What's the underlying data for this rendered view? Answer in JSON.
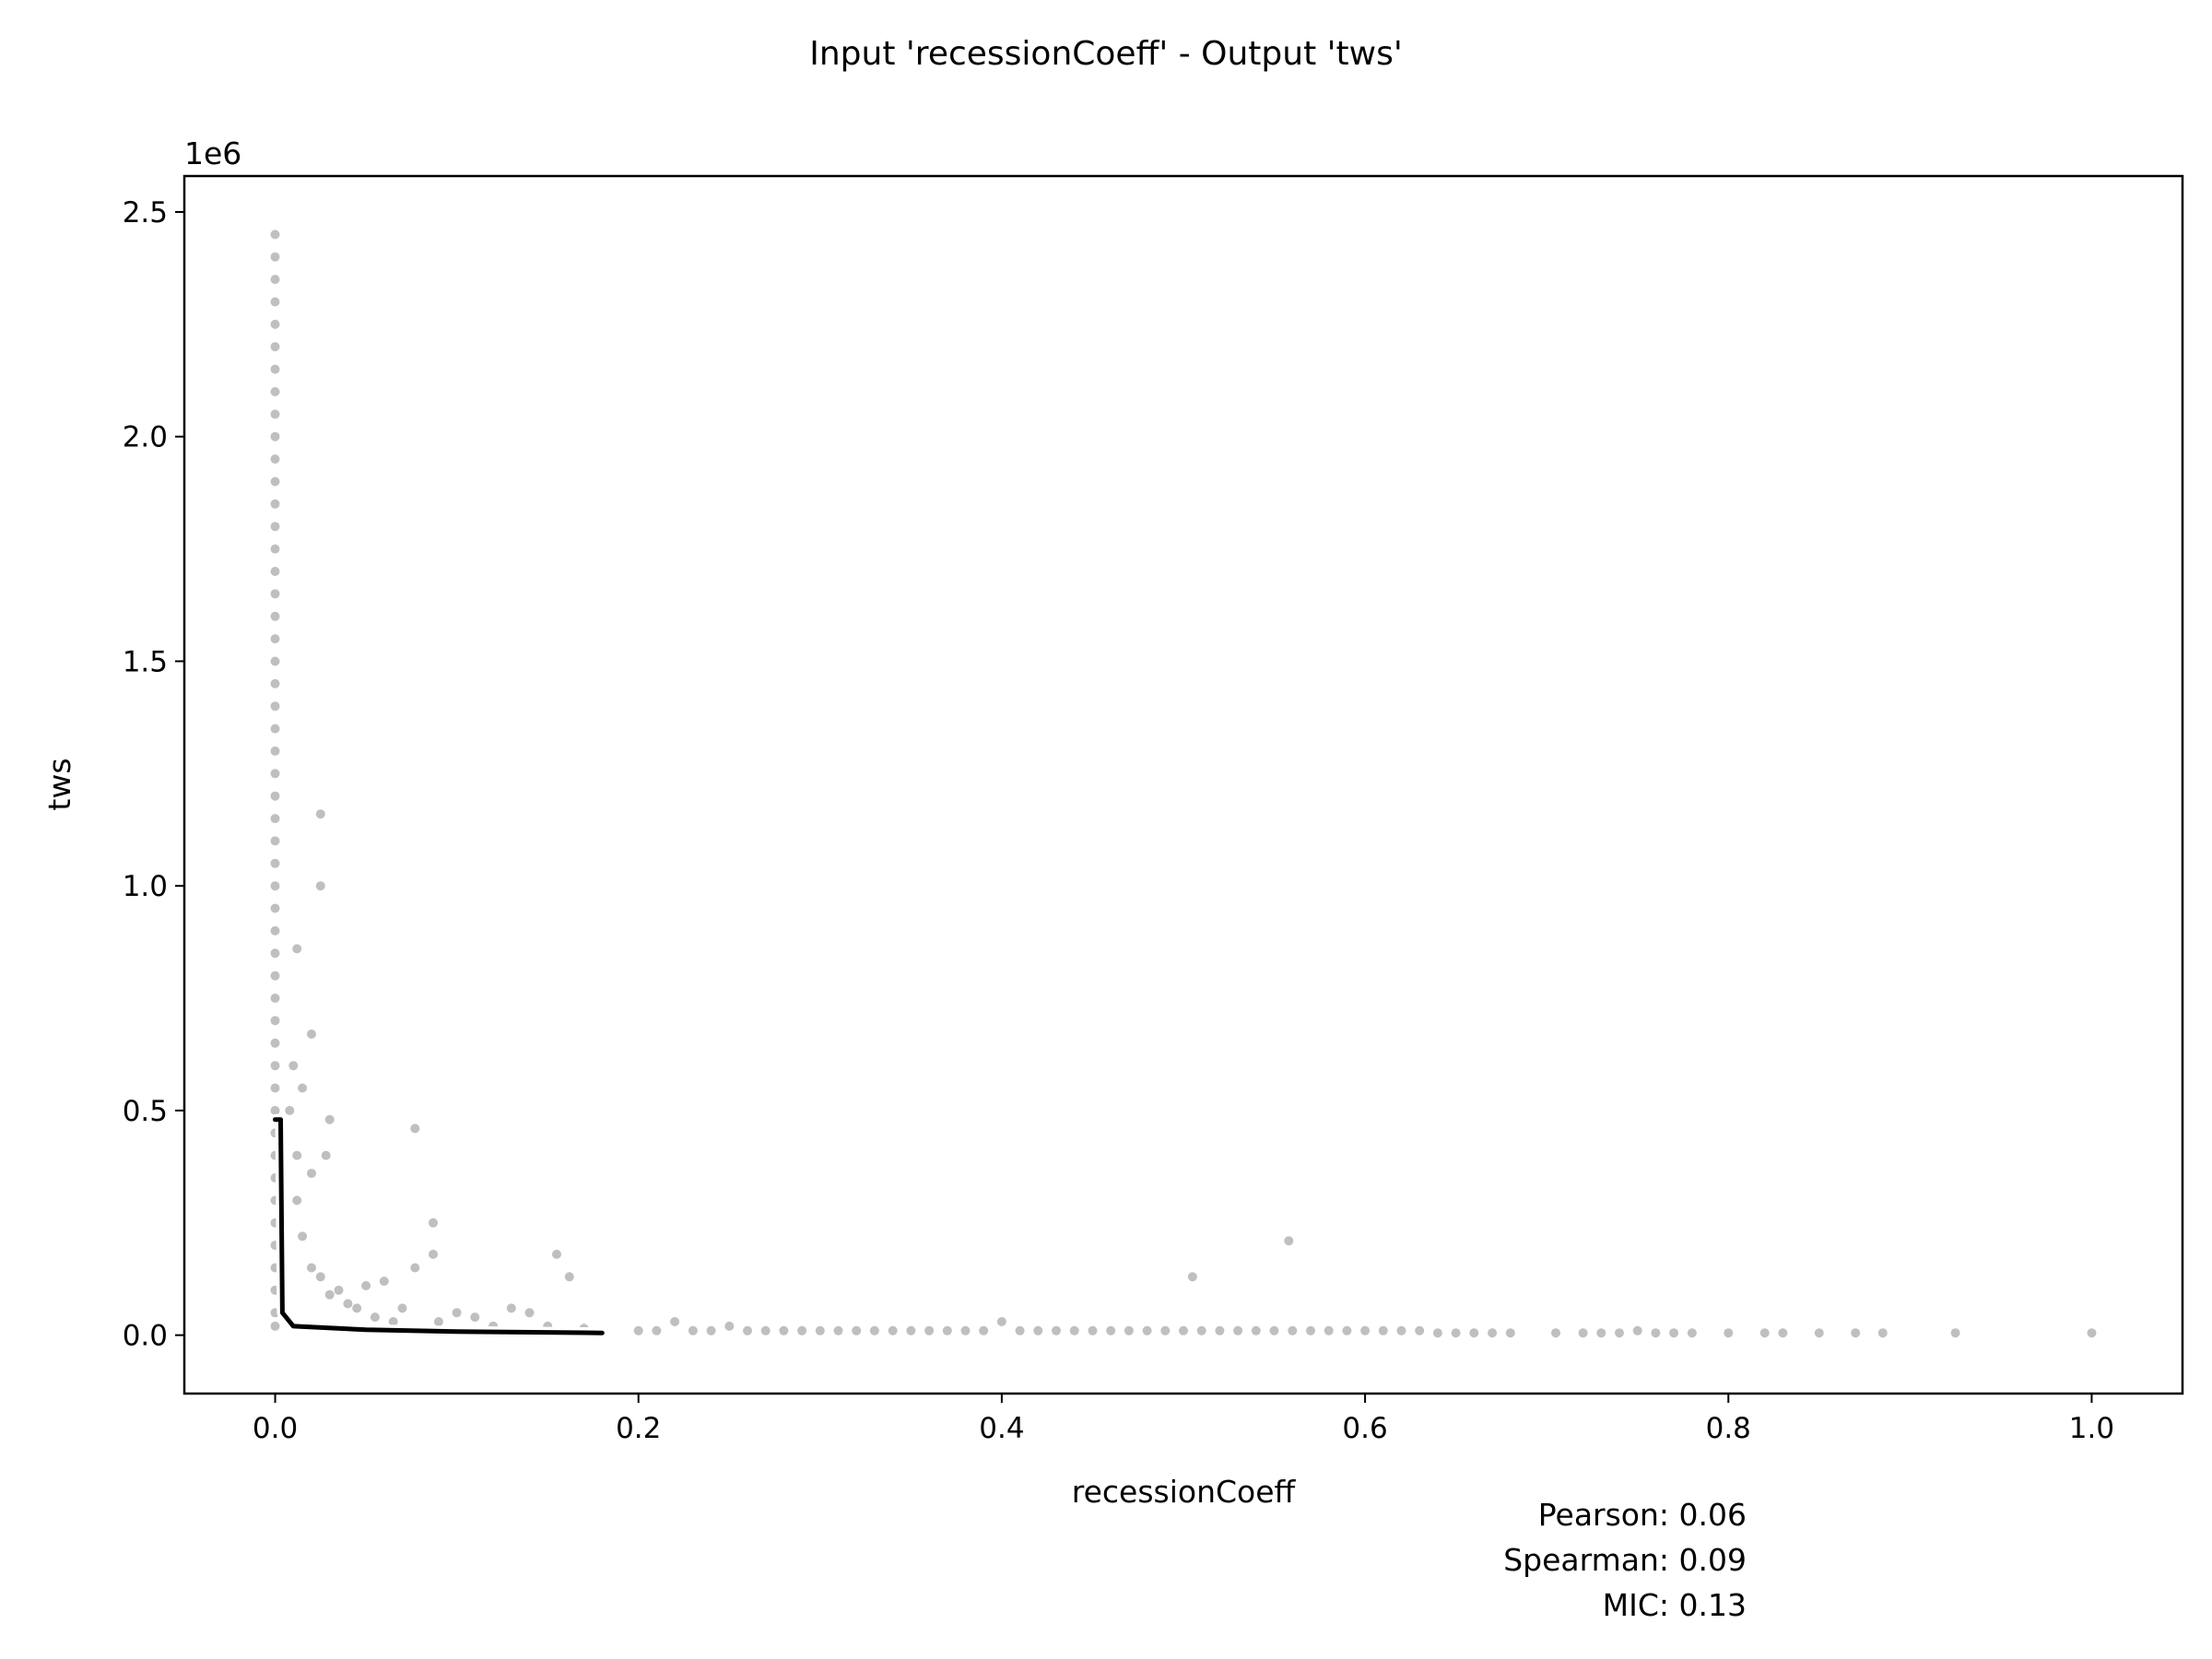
{
  "chart_data": {
    "type": "scatter",
    "title": "Input 'recessionCoeff' - Output 'tws'",
    "xlabel": "recessionCoeff",
    "ylabel": "tws",
    "offset_label": "1e6",
    "xlim": [
      -0.05,
      1.05
    ],
    "ylim": [
      -0.13,
      2.58
    ],
    "y_scale_factor": 1000000,
    "x_ticks": [
      0.0,
      0.2,
      0.4,
      0.6,
      0.8,
      1.0
    ],
    "x_tick_labels": [
      "0.0",
      "0.2",
      "0.4",
      "0.6",
      "0.8",
      "1.0"
    ],
    "y_ticks": [
      0.0,
      0.5,
      1.0,
      1.5,
      2.0,
      2.5
    ],
    "y_tick_labels": [
      "0.0",
      "0.5",
      "1.0",
      "1.5",
      "2.0",
      "2.5"
    ],
    "grid": false,
    "point_color": "#000000",
    "point_alpha": 0.25,
    "trend_line_color": "#000000",
    "trend_line_outline": "#ffffff",
    "scatter_points": [
      [
        0.0,
        2.45
      ],
      [
        0.0,
        2.4
      ],
      [
        0.0,
        2.35
      ],
      [
        0.0,
        2.3
      ],
      [
        0.0,
        2.25
      ],
      [
        0.0,
        2.2
      ],
      [
        0.0,
        2.15
      ],
      [
        0.0,
        2.1
      ],
      [
        0.0,
        2.05
      ],
      [
        0.0,
        2.0
      ],
      [
        0.0,
        1.95
      ],
      [
        0.0,
        1.9
      ],
      [
        0.0,
        1.85
      ],
      [
        0.0,
        1.8
      ],
      [
        0.0,
        1.75
      ],
      [
        0.0,
        1.7
      ],
      [
        0.0,
        1.65
      ],
      [
        0.0,
        1.6
      ],
      [
        0.0,
        1.55
      ],
      [
        0.0,
        1.5
      ],
      [
        0.0,
        1.45
      ],
      [
        0.0,
        1.4
      ],
      [
        0.0,
        1.35
      ],
      [
        0.0,
        1.3
      ],
      [
        0.0,
        1.25
      ],
      [
        0.0,
        1.2
      ],
      [
        0.0,
        1.15
      ],
      [
        0.0,
        1.1
      ],
      [
        0.0,
        1.05
      ],
      [
        0.0,
        1.0
      ],
      [
        0.0,
        0.95
      ],
      [
        0.0,
        0.9
      ],
      [
        0.0,
        0.85
      ],
      [
        0.0,
        0.8
      ],
      [
        0.0,
        0.75
      ],
      [
        0.0,
        0.7
      ],
      [
        0.0,
        0.65
      ],
      [
        0.0,
        0.6
      ],
      [
        0.0,
        0.55
      ],
      [
        0.0,
        0.5
      ],
      [
        0.0,
        0.45
      ],
      [
        0.0,
        0.4
      ],
      [
        0.0,
        0.35
      ],
      [
        0.0,
        0.3
      ],
      [
        0.0,
        0.25
      ],
      [
        0.0,
        0.2
      ],
      [
        0.0,
        0.15
      ],
      [
        0.0,
        0.1
      ],
      [
        0.0,
        0.05
      ],
      [
        0.0,
        0.02
      ],
      [
        0.025,
        1.16
      ],
      [
        0.025,
        1.0
      ],
      [
        0.012,
        0.86
      ],
      [
        0.02,
        0.67
      ],
      [
        0.01,
        0.6
      ],
      [
        0.015,
        0.55
      ],
      [
        0.008,
        0.5
      ],
      [
        0.03,
        0.48
      ],
      [
        0.077,
        0.46
      ],
      [
        0.012,
        0.4
      ],
      [
        0.028,
        0.4
      ],
      [
        0.02,
        0.36
      ],
      [
        0.012,
        0.3
      ],
      [
        0.087,
        0.25
      ],
      [
        0.015,
        0.22
      ],
      [
        0.087,
        0.18
      ],
      [
        0.155,
        0.18
      ],
      [
        0.077,
        0.15
      ],
      [
        0.162,
        0.13
      ],
      [
        0.05,
        0.11
      ],
      [
        0.06,
        0.12
      ],
      [
        0.03,
        0.09
      ],
      [
        0.04,
        0.07
      ],
      [
        0.07,
        0.06
      ],
      [
        0.1,
        0.05
      ],
      [
        0.13,
        0.06
      ],
      [
        0.14,
        0.05
      ],
      [
        0.11,
        0.04
      ],
      [
        0.02,
        0.15
      ],
      [
        0.025,
        0.13
      ],
      [
        0.035,
        0.1
      ],
      [
        0.045,
        0.06
      ],
      [
        0.055,
        0.04
      ],
      [
        0.065,
        0.03
      ],
      [
        0.09,
        0.03
      ],
      [
        0.12,
        0.02
      ],
      [
        0.15,
        0.02
      ],
      [
        0.17,
        0.015
      ],
      [
        0.505,
        0.13
      ],
      [
        0.558,
        0.21
      ],
      [
        0.22,
        0.03
      ],
      [
        0.25,
        0.02
      ],
      [
        0.4,
        0.03
      ],
      [
        0.2,
        0.01
      ],
      [
        0.21,
        0.01
      ],
      [
        0.23,
        0.01
      ],
      [
        0.24,
        0.01
      ],
      [
        0.26,
        0.01
      ],
      [
        0.27,
        0.01
      ],
      [
        0.28,
        0.01
      ],
      [
        0.29,
        0.01
      ],
      [
        0.3,
        0.01
      ],
      [
        0.31,
        0.01
      ],
      [
        0.32,
        0.01
      ],
      [
        0.33,
        0.01
      ],
      [
        0.34,
        0.01
      ],
      [
        0.35,
        0.01
      ],
      [
        0.36,
        0.01
      ],
      [
        0.37,
        0.01
      ],
      [
        0.38,
        0.01
      ],
      [
        0.39,
        0.01
      ],
      [
        0.41,
        0.01
      ],
      [
        0.42,
        0.01
      ],
      [
        0.43,
        0.01
      ],
      [
        0.44,
        0.01
      ],
      [
        0.45,
        0.01
      ],
      [
        0.46,
        0.01
      ],
      [
        0.47,
        0.01
      ],
      [
        0.48,
        0.01
      ],
      [
        0.49,
        0.01
      ],
      [
        0.5,
        0.01
      ],
      [
        0.51,
        0.01
      ],
      [
        0.52,
        0.01
      ],
      [
        0.53,
        0.01
      ],
      [
        0.54,
        0.01
      ],
      [
        0.55,
        0.01
      ],
      [
        0.56,
        0.01
      ],
      [
        0.57,
        0.01
      ],
      [
        0.58,
        0.01
      ],
      [
        0.59,
        0.01
      ],
      [
        0.6,
        0.01
      ],
      [
        0.61,
        0.01
      ],
      [
        0.62,
        0.01
      ],
      [
        0.63,
        0.01
      ],
      [
        0.64,
        0.005
      ],
      [
        0.65,
        0.005
      ],
      [
        0.66,
        0.005
      ],
      [
        0.67,
        0.005
      ],
      [
        0.68,
        0.005
      ],
      [
        0.705,
        0.005
      ],
      [
        0.72,
        0.005
      ],
      [
        0.73,
        0.005
      ],
      [
        0.74,
        0.005
      ],
      [
        0.75,
        0.01
      ],
      [
        0.76,
        0.005
      ],
      [
        0.77,
        0.005
      ],
      [
        0.78,
        0.005
      ],
      [
        0.8,
        0.005
      ],
      [
        0.82,
        0.005
      ],
      [
        0.83,
        0.005
      ],
      [
        0.85,
        0.005
      ],
      [
        0.87,
        0.005
      ],
      [
        0.885,
        0.005
      ],
      [
        0.925,
        0.005
      ],
      [
        1.0,
        0.005
      ]
    ],
    "trend_line": [
      [
        0.0,
        0.48
      ],
      [
        0.003,
        0.48
      ],
      [
        0.004,
        0.05
      ],
      [
        0.01,
        0.02
      ],
      [
        0.05,
        0.012
      ],
      [
        0.1,
        0.008
      ],
      [
        0.18,
        0.005
      ]
    ],
    "stats": [
      {
        "label": "Pearson",
        "value": "0.06"
      },
      {
        "label": "Spearman",
        "value": "0.09"
      },
      {
        "label": "MIC",
        "value": "0.13"
      }
    ]
  },
  "stats_text": {
    "pearson": "Pearson: 0.06",
    "spearman": "Spearman: 0.09",
    "mic": "MIC: 0.13"
  }
}
